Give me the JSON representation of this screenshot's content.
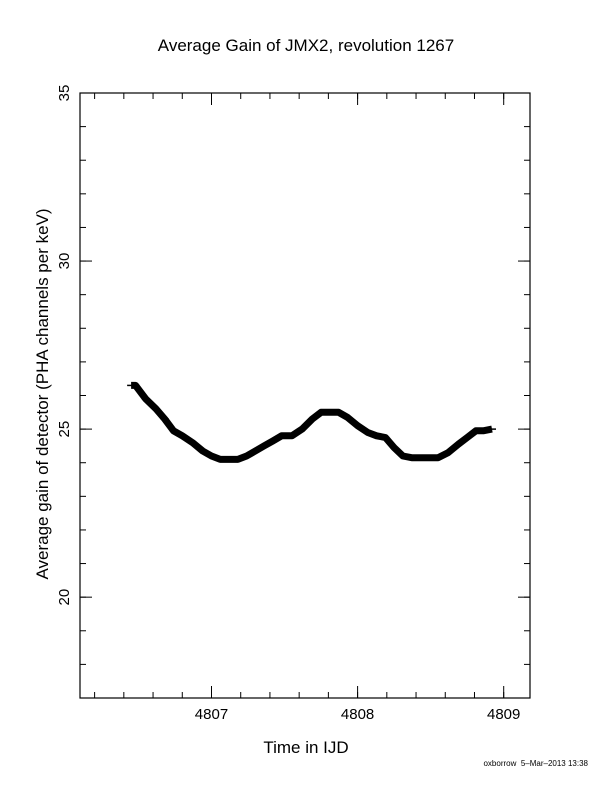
{
  "chart_data": {
    "type": "line",
    "title": "Average Gain of JMX2, revolution 1267",
    "xlabel": "Time in IJD",
    "ylabel": "Average gain of detector (PHA channels per keV)",
    "xlim": [
      4806.1,
      4809.18
    ],
    "ylim": [
      17,
      35
    ],
    "xticks_major": [
      4807,
      4808,
      4809
    ],
    "xticks_minor_step": 0.2,
    "yticks_major": [
      20,
      25,
      30,
      35
    ],
    "yticks_minor_step": 1,
    "grid": false,
    "series": [
      {
        "x": [
          4806.45,
          4806.48,
          4806.55,
          4806.62,
          4806.68,
          4806.74,
          4806.8,
          4806.87,
          4806.94,
          4807.0,
          4807.06,
          4807.12,
          4807.18,
          4807.24,
          4807.3,
          4807.36,
          4807.42,
          4807.48,
          4807.55,
          4807.62,
          4807.69,
          4807.75,
          4807.81,
          4807.87,
          4807.93,
          4808.0,
          4808.07,
          4808.13,
          4808.19,
          4808.25,
          4808.31,
          4808.37,
          4808.43,
          4808.49,
          4808.55,
          4808.62,
          4808.69,
          4808.75,
          4808.81,
          4808.86,
          4808.92
        ],
        "y": [
          26.3,
          26.3,
          25.9,
          25.6,
          25.3,
          24.95,
          24.8,
          24.6,
          24.35,
          24.2,
          24.1,
          24.1,
          24.1,
          24.2,
          24.35,
          24.5,
          24.65,
          24.8,
          24.8,
          25.0,
          25.3,
          25.5,
          25.5,
          25.5,
          25.35,
          25.1,
          24.9,
          24.8,
          24.75,
          24.45,
          24.2,
          24.15,
          24.15,
          24.15,
          24.15,
          24.3,
          24.55,
          24.75,
          24.95,
          24.95,
          25.0
        ]
      }
    ]
  },
  "footer": {
    "author": "oxborrow",
    "timestamp": "5–Mar–2013 13:38"
  }
}
